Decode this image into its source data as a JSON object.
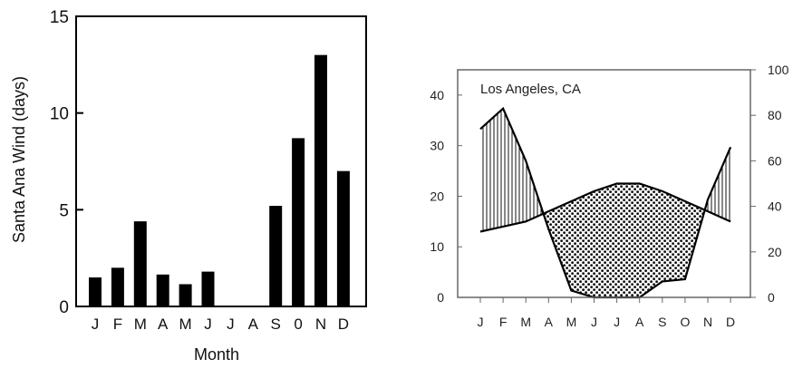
{
  "chart_data": [
    {
      "type": "bar",
      "categories": [
        "J",
        "F",
        "M",
        "A",
        "M",
        "J",
        "J",
        "A",
        "S",
        "0",
        "N",
        "D"
      ],
      "values": [
        1.5,
        2.0,
        4.4,
        1.65,
        1.15,
        1.8,
        0,
        0,
        5.2,
        8.7,
        13.0,
        7.0
      ],
      "xlabel": "Month",
      "ylabel": "Santa Ana Wind (days)",
      "ylim": [
        0,
        15
      ],
      "yticks": [
        "0",
        "5",
        "10",
        "15"
      ],
      "color": "#000000",
      "grid": false
    },
    {
      "type": "line",
      "title": "Los Angeles, CA",
      "categories": [
        "J",
        "F",
        "M",
        "A",
        "M",
        "J",
        "J",
        "A",
        "S",
        "O",
        "N",
        "D"
      ],
      "series": [
        {
          "axis": "right",
          "values": [
            74,
            83,
            60,
            30,
            3,
            0,
            0,
            0,
            7,
            8,
            43,
            66
          ]
        },
        {
          "axis": "left",
          "values": [
            13,
            14,
            15,
            17,
            19,
            21,
            22.5,
            22.5,
            21,
            19,
            17,
            15
          ]
        }
      ],
      "ylim_left": [
        0,
        45
      ],
      "yticks_left": [
        "0",
        "10",
        "20",
        "30",
        "40"
      ],
      "ylim_right": [
        0,
        100
      ],
      "yticks_right": [
        "0",
        "20",
        "40",
        "60",
        "80",
        "100"
      ],
      "fill_above_left": "vertical-hatch",
      "fill_below_left": "dot-pattern",
      "grid": false
    }
  ]
}
